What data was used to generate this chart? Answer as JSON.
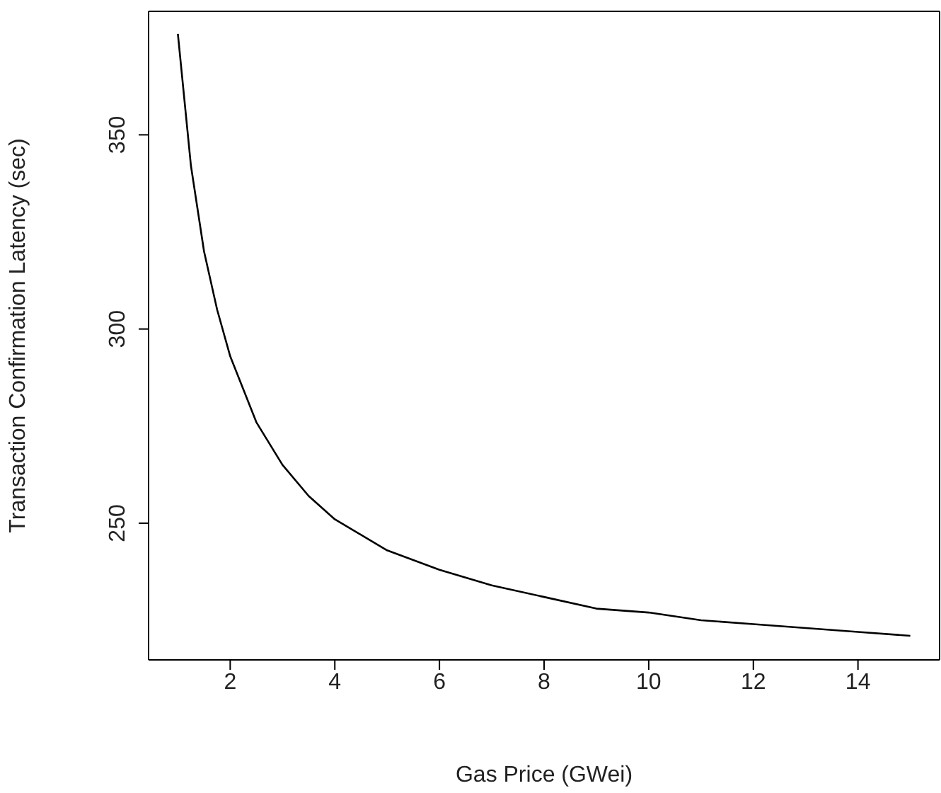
{
  "chart_data": {
    "type": "line",
    "xlabel": "Gas Price (GWei)",
    "ylabel": "Transaction Confirmation Latency (sec)",
    "x": [
      1,
      1.25,
      1.5,
      1.75,
      2,
      2.5,
      3,
      3.5,
      4,
      5,
      6,
      7,
      8,
      9,
      10,
      11,
      12,
      13,
      14,
      15
    ],
    "series": [
      {
        "color": "#000000",
        "values": [
          376,
          342,
          320,
          305,
          293,
          276,
          265,
          257,
          251,
          243,
          238,
          234,
          231,
          228,
          227,
          225,
          224,
          223,
          222,
          221
        ]
      }
    ],
    "xlim": [
      0.44,
      15.56
    ],
    "ylim": [
      214.8,
      381.8
    ],
    "xticks": [
      2,
      4,
      6,
      8,
      10,
      12,
      14
    ],
    "yticks": [
      250,
      300,
      350
    ],
    "grid": false,
    "legend": false,
    "marker": "none",
    "line_style": "solid"
  }
}
